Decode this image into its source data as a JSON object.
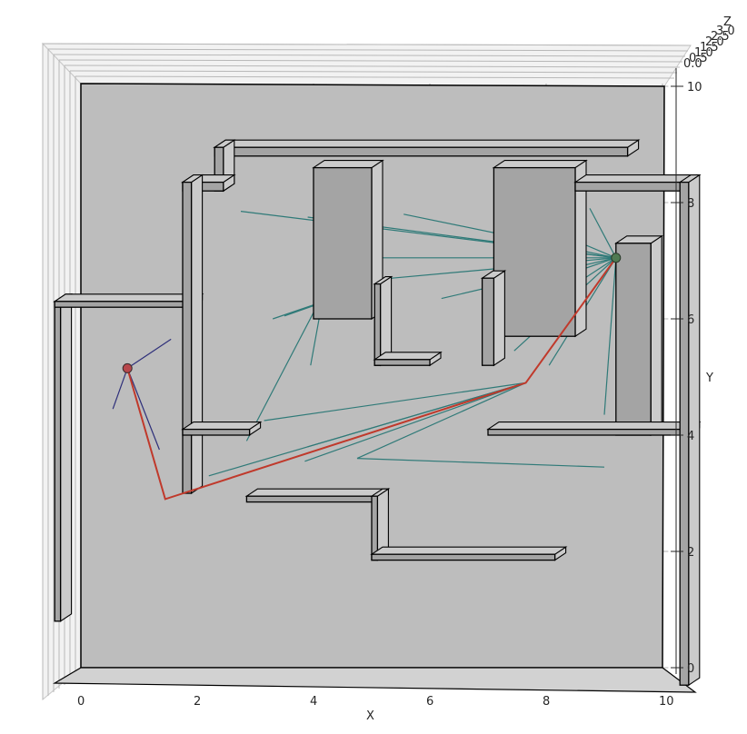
{
  "chart_data": {
    "type": "3d-scene",
    "axes": {
      "x": {
        "label": "X",
        "ticks": [
          "0",
          "2",
          "4",
          "6",
          "8",
          "10"
        ]
      },
      "y": {
        "label": "Y",
        "ticks": [
          "0",
          "2",
          "4",
          "6",
          "8",
          "10"
        ]
      },
      "z": {
        "label": "Z",
        "ticks": [
          "0.0",
          "0.5",
          "1.0",
          "1.5",
          "2.0",
          "2.5",
          "3.0"
        ]
      }
    },
    "grid": true,
    "colors": {
      "floor": "#bdbdbd",
      "wall_top": "#a4a4a4",
      "wall_side": "#cbcbcb",
      "rays_teal": "#2f7a78",
      "rays_navy": "#2e2f7a",
      "path": "#c0392b",
      "marker_start": "#b8474c",
      "marker_goal": "#4f7a52"
    },
    "obstacles": [
      {
        "id": "left-outer",
        "x": [
          -0.45,
          -0.35
        ],
        "y": [
          0.8,
          6.3
        ]
      },
      {
        "id": "left-ledge",
        "x": [
          -0.45,
          1.9
        ],
        "y": [
          6.2,
          6.3
        ]
      },
      {
        "id": "top-bar",
        "x": [
          2.3,
          9.4
        ],
        "y": [
          8.8,
          8.95
        ]
      },
      {
        "id": "top-left-post",
        "x": [
          2.3,
          2.45
        ],
        "y": [
          8.2,
          8.95
        ]
      },
      {
        "id": "left-ledge-top",
        "x": [
          1.75,
          2.45
        ],
        "y": [
          8.2,
          8.35
        ]
      },
      {
        "id": "inner-left",
        "x": [
          1.75,
          1.9
        ],
        "y": [
          3.0,
          8.35
        ]
      },
      {
        "id": "mid-left-shelf",
        "x": [
          1.75,
          2.9
        ],
        "y": [
          4.0,
          4.1
        ]
      },
      {
        "id": "tall-block-a",
        "x": [
          4.0,
          5.0
        ],
        "y": [
          6.0,
          8.6
        ]
      },
      {
        "id": "thin-post",
        "x": [
          5.05,
          5.15
        ],
        "y": [
          5.2,
          6.6
        ]
      },
      {
        "id": "small-ledge",
        "x": [
          5.05,
          6.0
        ],
        "y": [
          5.2,
          5.3
        ]
      },
      {
        "id": "tall-block-b",
        "x": [
          7.1,
          8.5
        ],
        "y": [
          5.7,
          8.6
        ]
      },
      {
        "id": "thin-post-b",
        "x": [
          6.9,
          7.1
        ],
        "y": [
          5.2,
          6.7
        ]
      },
      {
        "id": "right-top-bar",
        "x": [
          8.5,
          10.4
        ],
        "y": [
          8.2,
          8.35
        ]
      },
      {
        "id": "right-block",
        "x": [
          9.2,
          9.8
        ],
        "y": [
          4.0,
          7.3
        ]
      },
      {
        "id": "right-shelf",
        "x": [
          7.0,
          10.45
        ],
        "y": [
          4.0,
          4.1
        ]
      },
      {
        "id": "right-outer",
        "x": [
          10.3,
          10.45
        ],
        "y": [
          -0.3,
          8.35
        ]
      },
      {
        "id": "mid-shelf",
        "x": [
          2.85,
          5.1
        ],
        "y": [
          2.85,
          2.95
        ]
      },
      {
        "id": "mid-post",
        "x": [
          5.0,
          5.1
        ],
        "y": [
          1.85,
          2.95
        ]
      },
      {
        "id": "lower-shelf",
        "x": [
          5.0,
          8.15
        ],
        "y": [
          1.85,
          1.95
        ]
      }
    ],
    "start": {
      "x": 0.8,
      "y": 5.15
    },
    "goal": {
      "x": 9.2,
      "y": 7.05
    },
    "path": [
      {
        "x": 0.8,
        "y": 5.15
      },
      {
        "x": 1.45,
        "y": 2.9
      },
      {
        "x": 7.65,
        "y": 4.9
      },
      {
        "x": 9.2,
        "y": 7.05
      }
    ],
    "rays_teal": [
      {
        "from": [
          9.2,
          7.05
        ],
        "to": [
          2.75,
          7.85
        ]
      },
      {
        "from": [
          9.2,
          7.05
        ],
        "to": [
          3.9,
          7.75
        ]
      },
      {
        "from": [
          9.2,
          7.05
        ],
        "to": [
          5.55,
          7.8
        ]
      },
      {
        "from": [
          9.2,
          7.05
        ],
        "to": [
          7.3,
          7.85
        ]
      },
      {
        "from": [
          9.2,
          7.05
        ],
        "to": [
          8.75,
          7.9
        ]
      },
      {
        "from": [
          9.2,
          7.05
        ],
        "to": [
          4.5,
          7.05
        ]
      },
      {
        "from": [
          9.2,
          7.05
        ],
        "to": [
          5.35,
          6.7
        ]
      },
      {
        "from": [
          9.2,
          7.05
        ],
        "to": [
          6.2,
          6.35
        ]
      },
      {
        "from": [
          9.2,
          7.05
        ],
        "to": [
          7.3,
          6.4
        ]
      },
      {
        "from": [
          9.2,
          7.05
        ],
        "to": [
          8.05,
          6.3
        ]
      },
      {
        "from": [
          9.2,
          7.05
        ],
        "to": [
          7.45,
          5.45
        ]
      },
      {
        "from": [
          9.2,
          7.05
        ],
        "to": [
          8.05,
          5.2
        ]
      },
      {
        "from": [
          9.2,
          7.05
        ],
        "to": [
          9.45,
          5.45
        ]
      },
      {
        "from": [
          9.2,
          7.05
        ],
        "to": [
          9.0,
          4.35
        ]
      },
      {
        "from": [
          5.35,
          6.7
        ],
        "to": [
          3.3,
          6.0
        ]
      },
      {
        "from": [
          5.35,
          6.7
        ],
        "to": [
          3.5,
          6.05
        ]
      },
      {
        "from": [
          5.35,
          6.7
        ],
        "to": [
          4.15,
          6.25
        ]
      },
      {
        "from": [
          4.1,
          6.3
        ],
        "to": [
          2.85,
          3.9
        ]
      },
      {
        "from": [
          4.15,
          6.3
        ],
        "to": [
          3.95,
          5.2
        ]
      },
      {
        "from": [
          7.65,
          4.9
        ],
        "to": [
          2.2,
          3.3
        ]
      },
      {
        "from": [
          7.65,
          4.9
        ],
        "to": [
          3.15,
          4.25
        ]
      },
      {
        "from": [
          7.65,
          4.9
        ],
        "to": [
          3.9,
          3.8
        ]
      },
      {
        "from": [
          7.65,
          4.9
        ],
        "to": [
          3.85,
          3.55
        ]
      },
      {
        "from": [
          7.65,
          4.9
        ],
        "to": [
          4.75,
          3.6
        ]
      },
      {
        "from": [
          4.75,
          3.6
        ],
        "to": [
          9.0,
          3.45
        ]
      }
    ],
    "rays_navy": [
      {
        "from": [
          0.8,
          5.15
        ],
        "to": [
          1.55,
          5.65
        ]
      },
      {
        "from": [
          0.8,
          5.15
        ],
        "to": [
          1.35,
          3.75
        ]
      },
      {
        "from": [
          0.8,
          5.15
        ],
        "to": [
          0.55,
          4.45
        ]
      }
    ]
  }
}
